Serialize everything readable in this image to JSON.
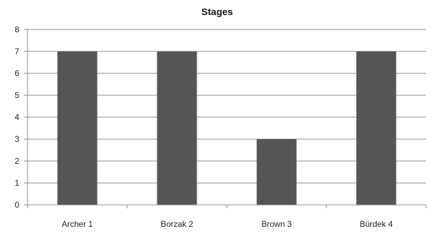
{
  "chart_data": {
    "type": "bar",
    "title": "Stages",
    "categories": [
      "Archer 1",
      "Borzak 2",
      "Brown 3",
      "Bürdek 4"
    ],
    "values": [
      7,
      7,
      3,
      7
    ],
    "ylim": [
      0,
      8
    ],
    "yticks": [
      0,
      1,
      2,
      3,
      4,
      5,
      6,
      7,
      8
    ],
    "grid": true,
    "legend": "none",
    "colors": {
      "bar": "#555555",
      "grid": "#8c8c8c",
      "axis": "#8c8c8c"
    }
  }
}
